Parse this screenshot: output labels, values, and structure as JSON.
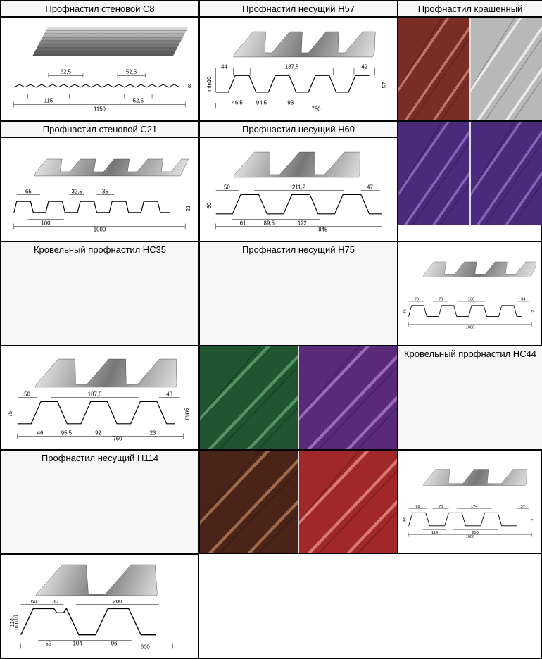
{
  "headers": {
    "col1": "Профнастил стеновой С8",
    "col2": "Профнастил несущий Н57",
    "col3": "Профнастил крашенный",
    "row2col1": "Профнастил стеновой С21",
    "row2col2": "Профнастил несущий Н60",
    "row3col1": "Кровельный профнастил НС35",
    "row3col2": "Профнастил несущий Н75",
    "row4col1": "Кровельный профнастил НС44",
    "row4col2": "Профнастил несущий Н114"
  },
  "c8": {
    "type": "profile",
    "waves": 8,
    "height": 8,
    "dims": {
      "top1": "62,5",
      "top2": "52,5",
      "bot1": "115",
      "bot2": "52,5",
      "total": "1150",
      "h": "8"
    },
    "color3d": "#8f8f8f"
  },
  "c21": {
    "type": "profile",
    "waves": 5,
    "height": 21,
    "dims": {
      "t1": "65",
      "t2": "32,5",
      "t3": "35",
      "b1": "100",
      "b2": "1000",
      "total": "1000",
      "h": "21"
    },
    "color3d": "#8f8f8f"
  },
  "hc35": {
    "type": "profile",
    "waves": 4,
    "height": 35,
    "dims": {
      "t1": "70",
      "t2": "70",
      "t3": "130",
      "t4": "34",
      "b1": "1000",
      "h1": "35",
      "h2": "7"
    },
    "color3d": "#8f8f8f"
  },
  "hc44": {
    "type": "profile",
    "waves": 3,
    "height": 44,
    "dims": {
      "t1": "78",
      "t2": "76",
      "t3": "174",
      "t4": "37",
      "b1": "114",
      "b2": "250",
      "total": "1000",
      "h": "44",
      "h2": "7"
    },
    "color3d": "#8f8f8f"
  },
  "h57": {
    "type": "profile",
    "waves": 4,
    "height": 57,
    "dims": {
      "t1": "44",
      "t2": "187,5",
      "t3": "42",
      "b1": "46,5",
      "b2": "94,5",
      "b3": "93",
      "total": "750",
      "h": "57",
      "min": "min10"
    },
    "color3d": "#8f8f8f"
  },
  "h60": {
    "type": "profile",
    "waves": 3,
    "height": 60,
    "dims": {
      "t1": "50",
      "t2": "211,2",
      "t3": "47",
      "b1": "61",
      "b2": "89,5",
      "b3": "122",
      "total": "845",
      "h": "60"
    },
    "color3d": "#8f8f8f"
  },
  "h75": {
    "type": "profile",
    "waves": 3,
    "height": 75,
    "dims": {
      "t1": "50",
      "t2": "187,5",
      "t3": "48",
      "b1": "46",
      "b2": "95,5",
      "b3": "92",
      "b4": "23",
      "total": "750",
      "h": "75",
      "min": "min6"
    },
    "color3d": "#8f8f8f"
  },
  "h114": {
    "type": "profile",
    "waves": 2,
    "height": 114,
    "dims": {
      "t1": "60",
      "t2": "30",
      "t3": "200",
      "b1": "52",
      "b2": "104",
      "b3": "96",
      "total": "600",
      "h": "114",
      "min": "min10"
    },
    "color3d": "#8f8f8f"
  },
  "swatches": [
    [
      {
        "base": "#7a2d26",
        "hi": "#c97b6e"
      },
      {
        "base": "#b8b8b8",
        "hi": "#f0f0f0"
      }
    ],
    [
      {
        "base": "#4a2a7a",
        "hi": "#8a6ac0"
      },
      {
        "base": "#4a2a7a",
        "hi": "#8a6ac0"
      }
    ],
    [
      {
        "base": "#1f5530",
        "hi": "#5a9a6a"
      },
      {
        "base": "#5a2a7a",
        "hi": "#a070c0"
      }
    ],
    [
      {
        "base": "#4a2418",
        "hi": "#a87050"
      },
      {
        "base": "#a02828",
        "hi": "#e08080"
      }
    ]
  ],
  "colors": {
    "border": "#000000",
    "bg": "#ffffff",
    "metal_light": "#d8d8d8",
    "metal_mid": "#9a9a9a",
    "metal_dark": "#5a5a5a",
    "line": "#000000"
  }
}
